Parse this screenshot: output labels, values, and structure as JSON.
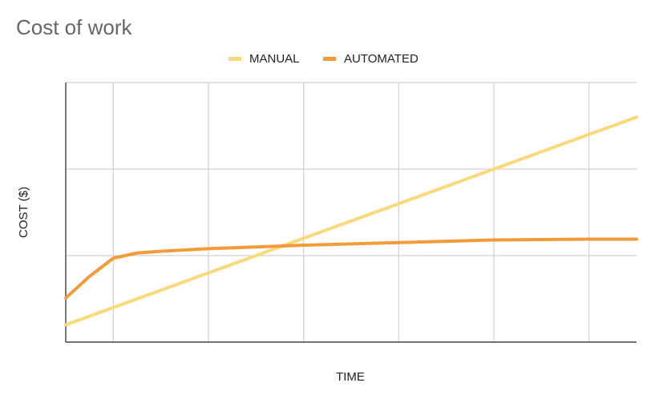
{
  "chart_data": {
    "type": "line",
    "title": "Cost of work",
    "xlabel": "TIME",
    "ylabel": "COST ($)",
    "x": [
      0.5,
      0.75,
      1,
      1.25,
      1.5,
      2,
      2.5,
      3,
      4,
      5,
      6,
      6.5
    ],
    "series": [
      {
        "name": "MANUAL",
        "color": "#f9d97a",
        "values": [
          0.2,
          0.3,
          0.4,
          0.5,
          0.6,
          0.8,
          1.0,
          1.2,
          1.6,
          2.0,
          2.4,
          2.6
        ]
      },
      {
        "name": "AUTOMATED",
        "color": "#f29b38",
        "values": [
          0.51,
          0.76,
          0.97,
          1.03,
          1.05,
          1.08,
          1.1,
          1.12,
          1.15,
          1.18,
          1.19,
          1.19
        ]
      }
    ],
    "xlim": [
      0.5,
      6.5
    ],
    "xticks": [
      1,
      2,
      3,
      4,
      5,
      6
    ],
    "ylim": [
      0,
      3
    ],
    "yticks": [
      1,
      2,
      3
    ],
    "grid": true,
    "legend": "top"
  }
}
